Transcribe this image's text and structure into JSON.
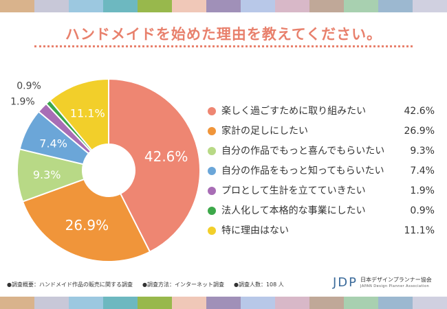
{
  "title": "ハンドメイドを始めた理由を教えてください。",
  "colors": {
    "title": "#e8806c",
    "stripe": [
      "#d9b38c",
      "#c8c8d8",
      "#9cc8e0",
      "#6db8c0",
      "#98b84c",
      "#f0c8b8",
      "#a090b8",
      "#b8c8e8",
      "#d8b8c8",
      "#c0a898",
      "#a8d0b0",
      "#9cb8d0",
      "#d0d0e0"
    ]
  },
  "chart_data": {
    "type": "pie",
    "donut": true,
    "labels": [
      "楽しく過ごすために取り組みたい",
      "家計の足しにしたい",
      "自分の作品でもっと喜んでもらいたい",
      "自分の作品をもっと知ってもらいたい",
      "プロとして生計を立てていきたい",
      "法人化して本格的な事業にしたい",
      "特に理由はない"
    ],
    "values": [
      42.6,
      26.9,
      9.3,
      7.4,
      1.9,
      0.9,
      11.1
    ],
    "display_values": [
      "42.6%",
      "26.9%",
      "9.3%",
      "7.4%",
      "1.9%",
      "0.9%",
      "11.1%"
    ],
    "colors": [
      "#ee8672",
      "#f0953a",
      "#b8d986",
      "#6ba6d8",
      "#a86db5",
      "#3da84a",
      "#f2cf2a"
    ],
    "legend_position": "right"
  },
  "footer": {
    "items": [
      "●調査概要：ハンドメイド作品の販売に関する調査",
      "●調査方法：インターネット調査",
      "●調査人数：108 人"
    ]
  },
  "logo": {
    "mark": "JDP",
    "name_jp": "日本デザインプランナー協会",
    "name_en": "JAPAN Design Planner Association"
  }
}
